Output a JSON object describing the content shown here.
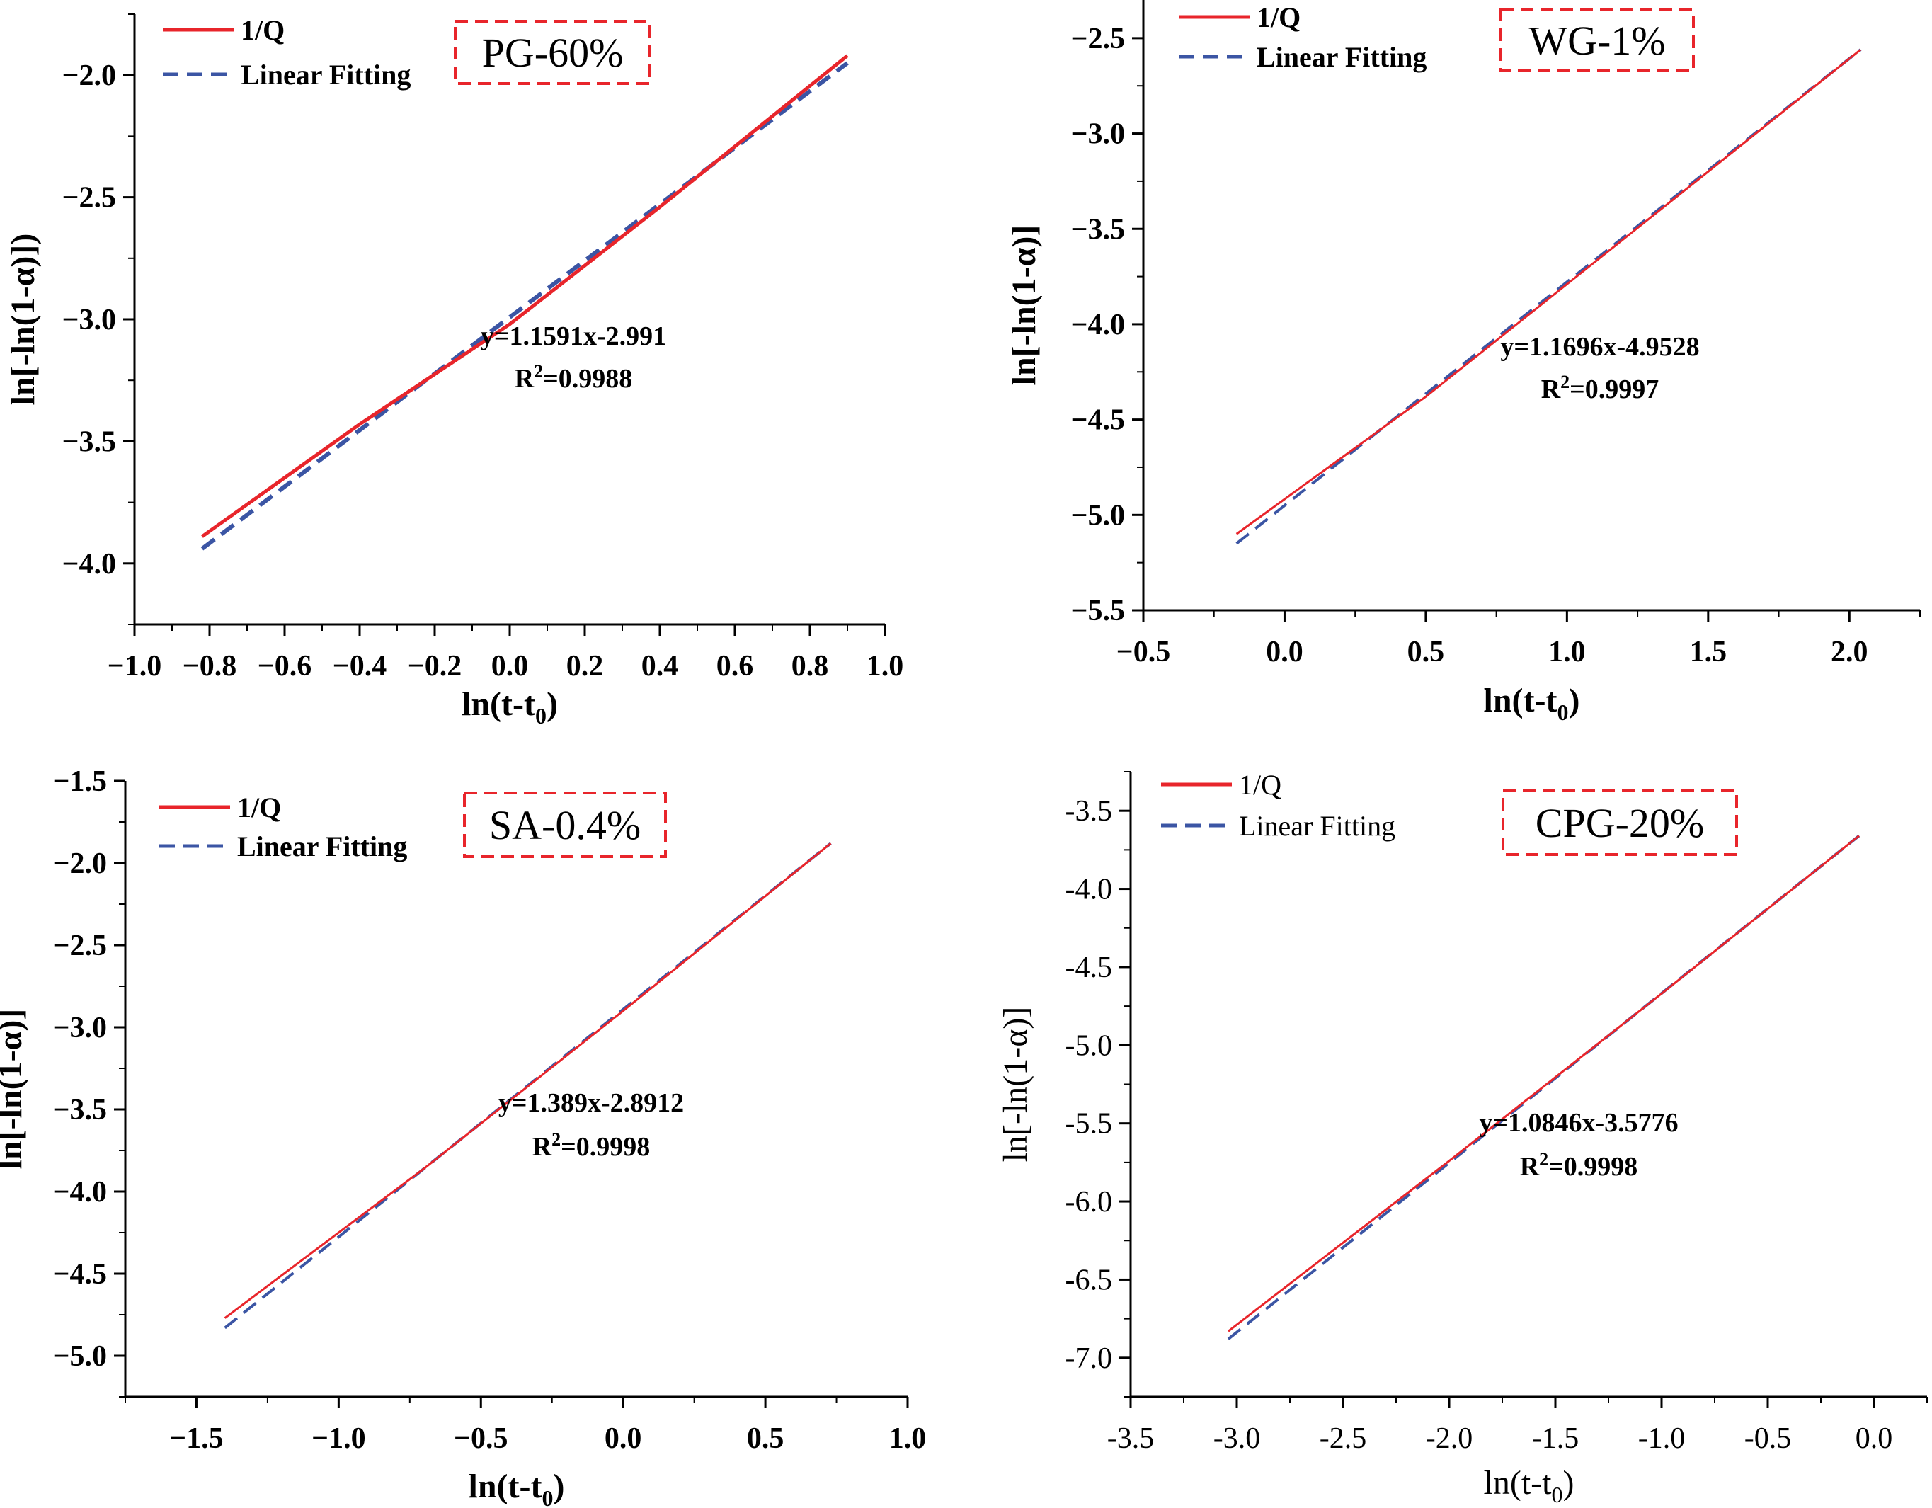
{
  "colors": {
    "data_line": "#e8252b",
    "fit_line": "#3b55a4",
    "tag_border": "#e8252b",
    "axis": "#000000"
  },
  "chart_data": [
    {
      "type": "line",
      "id": "pg",
      "tag": "PG-60%",
      "bold_text": true,
      "xlabel": "ln(t-t0)",
      "xlabel_main": "ln(t-t",
      "xlabel_sub": "0",
      "xlabel_close": ")",
      "ylabel": "ln[-ln(1-α)])",
      "xlim": [
        -1.0,
        1.0
      ],
      "ylim": [
        -4.25,
        -1.75
      ],
      "xticks": [
        -1.0,
        -0.8,
        -0.6,
        -0.4,
        -0.2,
        0.0,
        0.2,
        0.4,
        0.6,
        0.8,
        1.0
      ],
      "xtick_labels": [
        "−1.0",
        "−0.8",
        "−0.6",
        "−0.4",
        "−0.2",
        "0.0",
        "0.2",
        "0.4",
        "0.6",
        "0.8",
        "1.0"
      ],
      "yticks": [
        -4.0,
        -3.5,
        -3.0,
        -2.5,
        -2.0
      ],
      "ytick_labels": [
        "−4.0",
        "−3.5",
        "−3.0",
        "−2.5",
        "−2.0"
      ],
      "equation": "y=1.1591x-2.991",
      "r2_prefix": "R",
      "r2_sup": "2",
      "r2_value": "=0.9988",
      "legend": [
        "1/Q",
        "Linear Fitting"
      ],
      "series": [
        {
          "name": "1/Q",
          "x": [
            -0.82,
            -0.4,
            0.0,
            0.4,
            0.9
          ],
          "y": [
            -3.89,
            -3.43,
            -3.02,
            -2.54,
            -1.92
          ]
        },
        {
          "name": "Linear Fitting",
          "x": [
            -0.82,
            0.9
          ],
          "y": [
            -3.94,
            -1.95
          ]
        }
      ]
    },
    {
      "type": "line",
      "id": "wg",
      "tag": "WG-1%",
      "bold_text": true,
      "xlabel": "ln(t-t0)",
      "xlabel_main": "ln(t-t",
      "xlabel_sub": "0",
      "xlabel_close": ")",
      "ylabel": "ln[-ln(1-α)]",
      "xlim": [
        -0.5,
        2.25
      ],
      "ylim": [
        -5.5,
        -2.3
      ],
      "xticks": [
        -0.5,
        0.0,
        0.5,
        1.0,
        1.5,
        2.0
      ],
      "xtick_labels": [
        "−0.5",
        "0.0",
        "0.5",
        "1.0",
        "1.5",
        "2.0"
      ],
      "yticks": [
        -5.5,
        -5.0,
        -4.5,
        -4.0,
        -3.5,
        -3.0,
        -2.5
      ],
      "ytick_labels": [
        "−5.5",
        "−5.0",
        "−4.5",
        "−4.0",
        "−3.5",
        "−3.0",
        "−2.5"
      ],
      "equation": "y=1.1696x-4.9528",
      "r2_prefix": "R",
      "r2_sup": "2",
      "r2_value": "=0.9997",
      "legend": [
        "1/Q",
        "Linear Fitting"
      ],
      "series": [
        {
          "name": "1/Q",
          "x": [
            -0.17,
            0.5,
            1.0,
            1.5,
            2.04
          ],
          "y": [
            -5.1,
            -4.38,
            -3.79,
            -3.2,
            -2.56
          ]
        },
        {
          "name": "Linear Fitting",
          "x": [
            -0.17,
            2.04
          ],
          "y": [
            -5.15,
            -2.56
          ]
        }
      ]
    },
    {
      "type": "line",
      "id": "sa",
      "tag": "SA-0.4%",
      "bold_text": true,
      "xlabel": "ln(t-t0)",
      "xlabel_main": "ln(t-t",
      "xlabel_sub": "0",
      "xlabel_close": ")",
      "ylabel": "ln[-ln(1-α)]",
      "xlim": [
        -1.75,
        1.0
      ],
      "ylim": [
        -5.25,
        -1.5
      ],
      "xticks": [
        -1.5,
        -1.0,
        -0.5,
        0.0,
        0.5,
        1.0
      ],
      "xtick_labels": [
        "−1.5",
        "−1.0",
        "−0.5",
        "0.0",
        "0.5",
        "1.0"
      ],
      "yticks": [
        -5.0,
        -4.5,
        -4.0,
        -3.5,
        -3.0,
        -2.5,
        -2.0,
        -1.5
      ],
      "ytick_labels": [
        "−5.0",
        "−4.5",
        "−4.0",
        "−3.5",
        "−3.0",
        "−2.5",
        "−2.0",
        "−1.5"
      ],
      "equation": "y=1.389x-2.8912",
      "r2_prefix": "R",
      "r2_sup": "2",
      "r2_value": "=0.9998",
      "legend": [
        "1/Q",
        "Linear Fitting"
      ],
      "series": [
        {
          "name": "1/Q",
          "x": [
            -1.4,
            -0.7,
            0.0,
            0.73
          ],
          "y": [
            -4.77,
            -3.86,
            -2.9,
            -1.88
          ]
        },
        {
          "name": "Linear Fitting",
          "x": [
            -1.4,
            0.73
          ],
          "y": [
            -4.83,
            -1.88
          ]
        }
      ]
    },
    {
      "type": "line",
      "id": "cpg",
      "tag": "CPG-20%",
      "bold_text": false,
      "xlabel": "ln(t-t0)",
      "xlabel_main": "ln(t-t",
      "xlabel_sub": "0",
      "xlabel_close": ")",
      "ylabel": "ln[-ln(1-α)]",
      "xlim": [
        -3.5,
        0.25
      ],
      "ylim": [
        -7.25,
        -3.25
      ],
      "xticks": [
        -3.5,
        -3.0,
        -2.5,
        -2.0,
        -1.5,
        -1.0,
        -0.5,
        0.0
      ],
      "xtick_labels": [
        "-3.5",
        "-3.0",
        "-2.5",
        "-2.0",
        "-1.5",
        "-1.0",
        "-0.5",
        "0.0"
      ],
      "yticks": [
        -7.0,
        -6.5,
        -6.0,
        -5.5,
        -5.0,
        -4.5,
        -4.0,
        -3.5
      ],
      "ytick_labels": [
        "-7.0",
        "-6.5",
        "-6.0",
        "-5.5",
        "-5.0",
        "-4.5",
        "-4.0",
        "-3.5"
      ],
      "equation": "y=1.0846x-3.5776",
      "r2_prefix": "R",
      "r2_sup": "2",
      "r2_value": "=0.9998",
      "legend": [
        "1/Q",
        "Linear Fitting"
      ],
      "series": [
        {
          "name": "1/Q",
          "x": [
            -3.04,
            -2.0,
            -1.0,
            -0.07
          ],
          "y": [
            -6.83,
            -5.74,
            -4.67,
            -3.66
          ]
        },
        {
          "name": "Linear Fitting",
          "x": [
            -3.04,
            -0.07
          ],
          "y": [
            -6.88,
            -3.66
          ]
        }
      ]
    }
  ]
}
